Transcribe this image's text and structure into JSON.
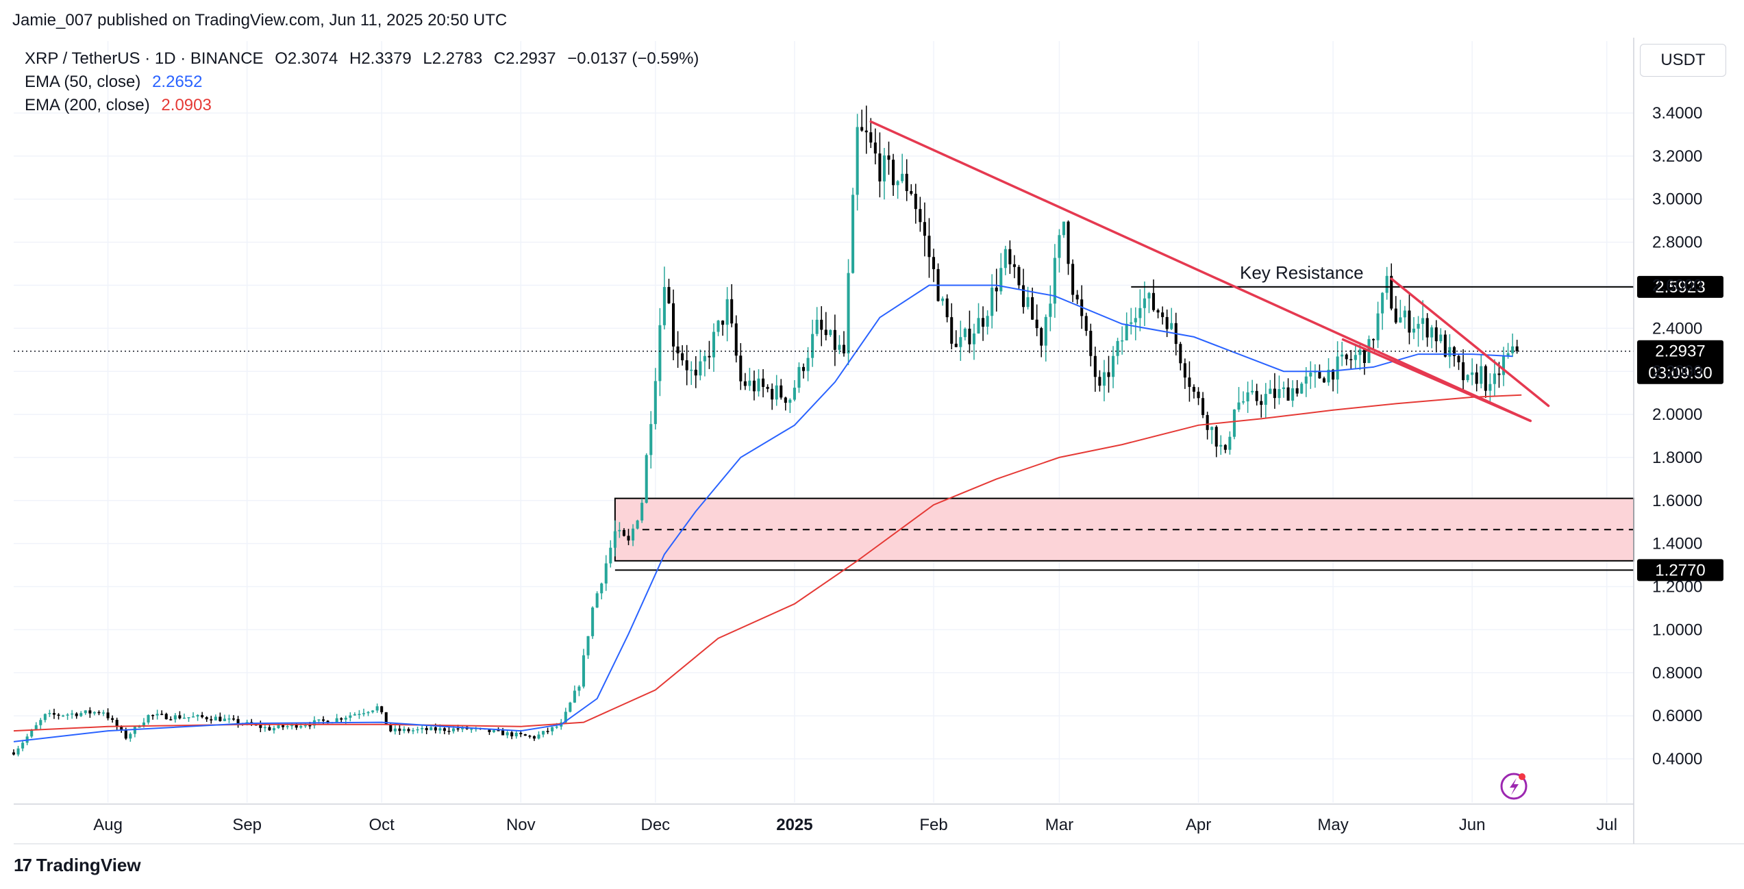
{
  "header": {
    "published_by": "Jamie_007 published on TradingView.com, Jun 11, 2025 20:50 UTC"
  },
  "legend": {
    "symbol": "XRP / TetherUS · 1D · BINANCE",
    "open": "O2.3074",
    "high": "H2.3379",
    "low": "L2.2783",
    "close": "C2.2937",
    "change": "−0.0137 (−0.59%)",
    "ema50_label": "EMA (50, close)",
    "ema50_value": "2.2652",
    "ema200_label": "EMA (200, close)",
    "ema200_value": "2.0903"
  },
  "currency_button": "USDT",
  "footer": {
    "brand": "TradingView",
    "mark": "17"
  },
  "colors": {
    "up": "#26a69a",
    "down": "#000000",
    "ema50": "#2962ff",
    "ema200": "#e53935",
    "trendline": "#e53950",
    "zone_fill": "#fcd4d8"
  },
  "chart_data": {
    "type": "candlestick",
    "x_axis": {
      "labels": [
        {
          "date": "2024-08-01",
          "text": "Aug"
        },
        {
          "date": "2024-09-01",
          "text": "Sep"
        },
        {
          "date": "2024-10-01",
          "text": "Oct"
        },
        {
          "date": "2024-11-01",
          "text": "Nov"
        },
        {
          "date": "2024-12-01",
          "text": "Dec"
        },
        {
          "date": "2025-01-01",
          "text": "2025"
        },
        {
          "date": "2025-02-01",
          "text": "Feb"
        },
        {
          "date": "2025-03-01",
          "text": "Mar"
        },
        {
          "date": "2025-04-01",
          "text": "Apr"
        },
        {
          "date": "2025-05-01",
          "text": "May"
        },
        {
          "date": "2025-06-01",
          "text": "Jun"
        },
        {
          "date": "2025-07-01",
          "text": "Jul"
        }
      ],
      "range": [
        "2024-07-11",
        "2025-07-07"
      ]
    },
    "y_axis": {
      "range": [
        0.2,
        3.5
      ],
      "ticks": [
        "3.4000",
        "3.2000",
        "3.0000",
        "2.8000",
        "2.6000",
        "2.4000",
        "2.2000",
        "2.0000",
        "1.8000",
        "1.6000",
        "1.4000",
        "1.2000",
        "1.0000",
        "0.8000",
        "0.6000",
        "0.4000"
      ]
    },
    "price_labels": [
      {
        "value": 2.5923,
        "text": "2.5923"
      },
      {
        "value": 2.2937,
        "text": "2.2937",
        "sub": "03:09:30"
      },
      {
        "value": 1.277,
        "text": "1.2770"
      }
    ],
    "annotations": {
      "key_resistance": {
        "text": "Key Resistance",
        "value": 2.5923,
        "from": "2025-03-17"
      },
      "support_zone": {
        "top": 1.61,
        "bottom": 1.32,
        "mid": 1.465,
        "from": "2024-11-22"
      },
      "support_line": {
        "value": 1.277,
        "from": "2024-11-22"
      },
      "current_price_line": 2.2937,
      "trendlines": [
        {
          "from": [
            "2025-01-18",
            3.36
          ],
          "to": [
            "2025-06-14",
            1.97
          ]
        },
        {
          "from": [
            "2025-05-14",
            2.63
          ],
          "to": [
            "2025-06-18",
            2.04
          ]
        }
      ]
    },
    "ema50": [
      [
        "2024-07-11",
        0.48
      ],
      [
        "2024-08-01",
        0.53
      ],
      [
        "2024-09-01",
        0.565
      ],
      [
        "2024-10-01",
        0.57
      ],
      [
        "2024-10-15",
        0.55
      ],
      [
        "2024-11-01",
        0.53
      ],
      [
        "2024-11-10",
        0.56
      ],
      [
        "2024-11-18",
        0.68
      ],
      [
        "2024-11-25",
        0.98
      ],
      [
        "2024-12-03",
        1.35
      ],
      [
        "2024-12-10",
        1.55
      ],
      [
        "2024-12-20",
        1.8
      ],
      [
        "2025-01-01",
        1.95
      ],
      [
        "2025-01-10",
        2.15
      ],
      [
        "2025-01-20",
        2.45
      ],
      [
        "2025-01-31",
        2.6
      ],
      [
        "2025-02-15",
        2.6
      ],
      [
        "2025-02-28",
        2.55
      ],
      [
        "2025-03-15",
        2.42
      ],
      [
        "2025-03-31",
        2.36
      ],
      [
        "2025-04-10",
        2.28
      ],
      [
        "2025-04-20",
        2.2
      ],
      [
        "2025-04-30",
        2.2
      ],
      [
        "2025-05-10",
        2.22
      ],
      [
        "2025-05-20",
        2.28
      ],
      [
        "2025-06-01",
        2.28
      ],
      [
        "2025-06-10",
        2.27
      ]
    ],
    "ema200": [
      [
        "2024-07-11",
        0.53
      ],
      [
        "2024-08-01",
        0.55
      ],
      [
        "2024-09-01",
        0.56
      ],
      [
        "2024-10-01",
        0.56
      ],
      [
        "2024-11-01",
        0.55
      ],
      [
        "2024-11-15",
        0.57
      ],
      [
        "2024-12-01",
        0.72
      ],
      [
        "2024-12-15",
        0.96
      ],
      [
        "2025-01-01",
        1.12
      ],
      [
        "2025-01-15",
        1.32
      ],
      [
        "2025-02-01",
        1.58
      ],
      [
        "2025-02-15",
        1.7
      ],
      [
        "2025-03-01",
        1.8
      ],
      [
        "2025-03-15",
        1.86
      ],
      [
        "2025-04-01",
        1.95
      ],
      [
        "2025-04-15",
        1.98
      ],
      [
        "2025-05-01",
        2.02
      ],
      [
        "2025-05-15",
        2.05
      ],
      [
        "2025-06-01",
        2.08
      ],
      [
        "2025-06-12",
        2.09
      ]
    ],
    "price_path": [
      [
        "2024-07-11",
        0.43
      ],
      [
        "2024-07-18",
        0.6
      ],
      [
        "2024-07-31",
        0.62
      ],
      [
        "2024-08-05",
        0.5
      ],
      [
        "2024-08-10",
        0.6
      ],
      [
        "2024-08-25",
        0.59
      ],
      [
        "2024-09-06",
        0.54
      ],
      [
        "2024-09-20",
        0.58
      ],
      [
        "2024-09-30",
        0.64
      ],
      [
        "2024-10-03",
        0.53
      ],
      [
        "2024-10-20",
        0.54
      ],
      [
        "2024-11-04",
        0.5
      ],
      [
        "2024-11-10",
        0.56
      ],
      [
        "2024-11-14",
        0.75
      ],
      [
        "2024-11-17",
        1.1
      ],
      [
        "2024-11-22",
        1.45
      ],
      [
        "2024-11-25",
        1.4
      ],
      [
        "2024-11-28",
        1.6
      ],
      [
        "2024-12-01",
        2.2
      ],
      [
        "2024-12-03",
        2.65
      ],
      [
        "2024-12-05",
        2.35
      ],
      [
        "2024-12-10",
        2.15
      ],
      [
        "2024-12-17",
        2.5
      ],
      [
        "2024-12-20",
        2.15
      ],
      [
        "2024-12-31",
        2.08
      ],
      [
        "2025-01-06",
        2.4
      ],
      [
        "2025-01-12",
        2.28
      ],
      [
        "2025-01-15",
        3.3
      ],
      [
        "2025-01-17",
        3.28
      ],
      [
        "2025-01-20",
        3.15
      ],
      [
        "2025-01-27",
        3.05
      ],
      [
        "2025-02-03",
        2.5
      ],
      [
        "2025-02-06",
        2.3
      ],
      [
        "2025-02-12",
        2.45
      ],
      [
        "2025-02-17",
        2.72
      ],
      [
        "2025-02-25",
        2.35
      ],
      [
        "2025-03-02",
        2.9
      ],
      [
        "2025-03-04",
        2.6
      ],
      [
        "2025-03-10",
        2.1
      ],
      [
        "2025-03-19",
        2.55
      ],
      [
        "2025-03-25",
        2.45
      ],
      [
        "2025-03-31",
        2.1
      ],
      [
        "2025-04-07",
        1.8
      ],
      [
        "2025-04-09",
        2.05
      ],
      [
        "2025-04-20",
        2.1
      ],
      [
        "2025-04-30",
        2.2
      ],
      [
        "2025-05-09",
        2.3
      ],
      [
        "2025-05-13",
        2.6
      ],
      [
        "2025-05-15",
        2.45
      ],
      [
        "2025-05-23",
        2.4
      ],
      [
        "2025-05-31",
        2.14
      ],
      [
        "2025-06-03",
        2.2
      ],
      [
        "2025-06-05",
        2.1
      ],
      [
        "2025-06-08",
        2.25
      ],
      [
        "2025-06-11",
        2.29
      ]
    ],
    "last_close": 2.2937,
    "last_date": "2025-06-11"
  }
}
